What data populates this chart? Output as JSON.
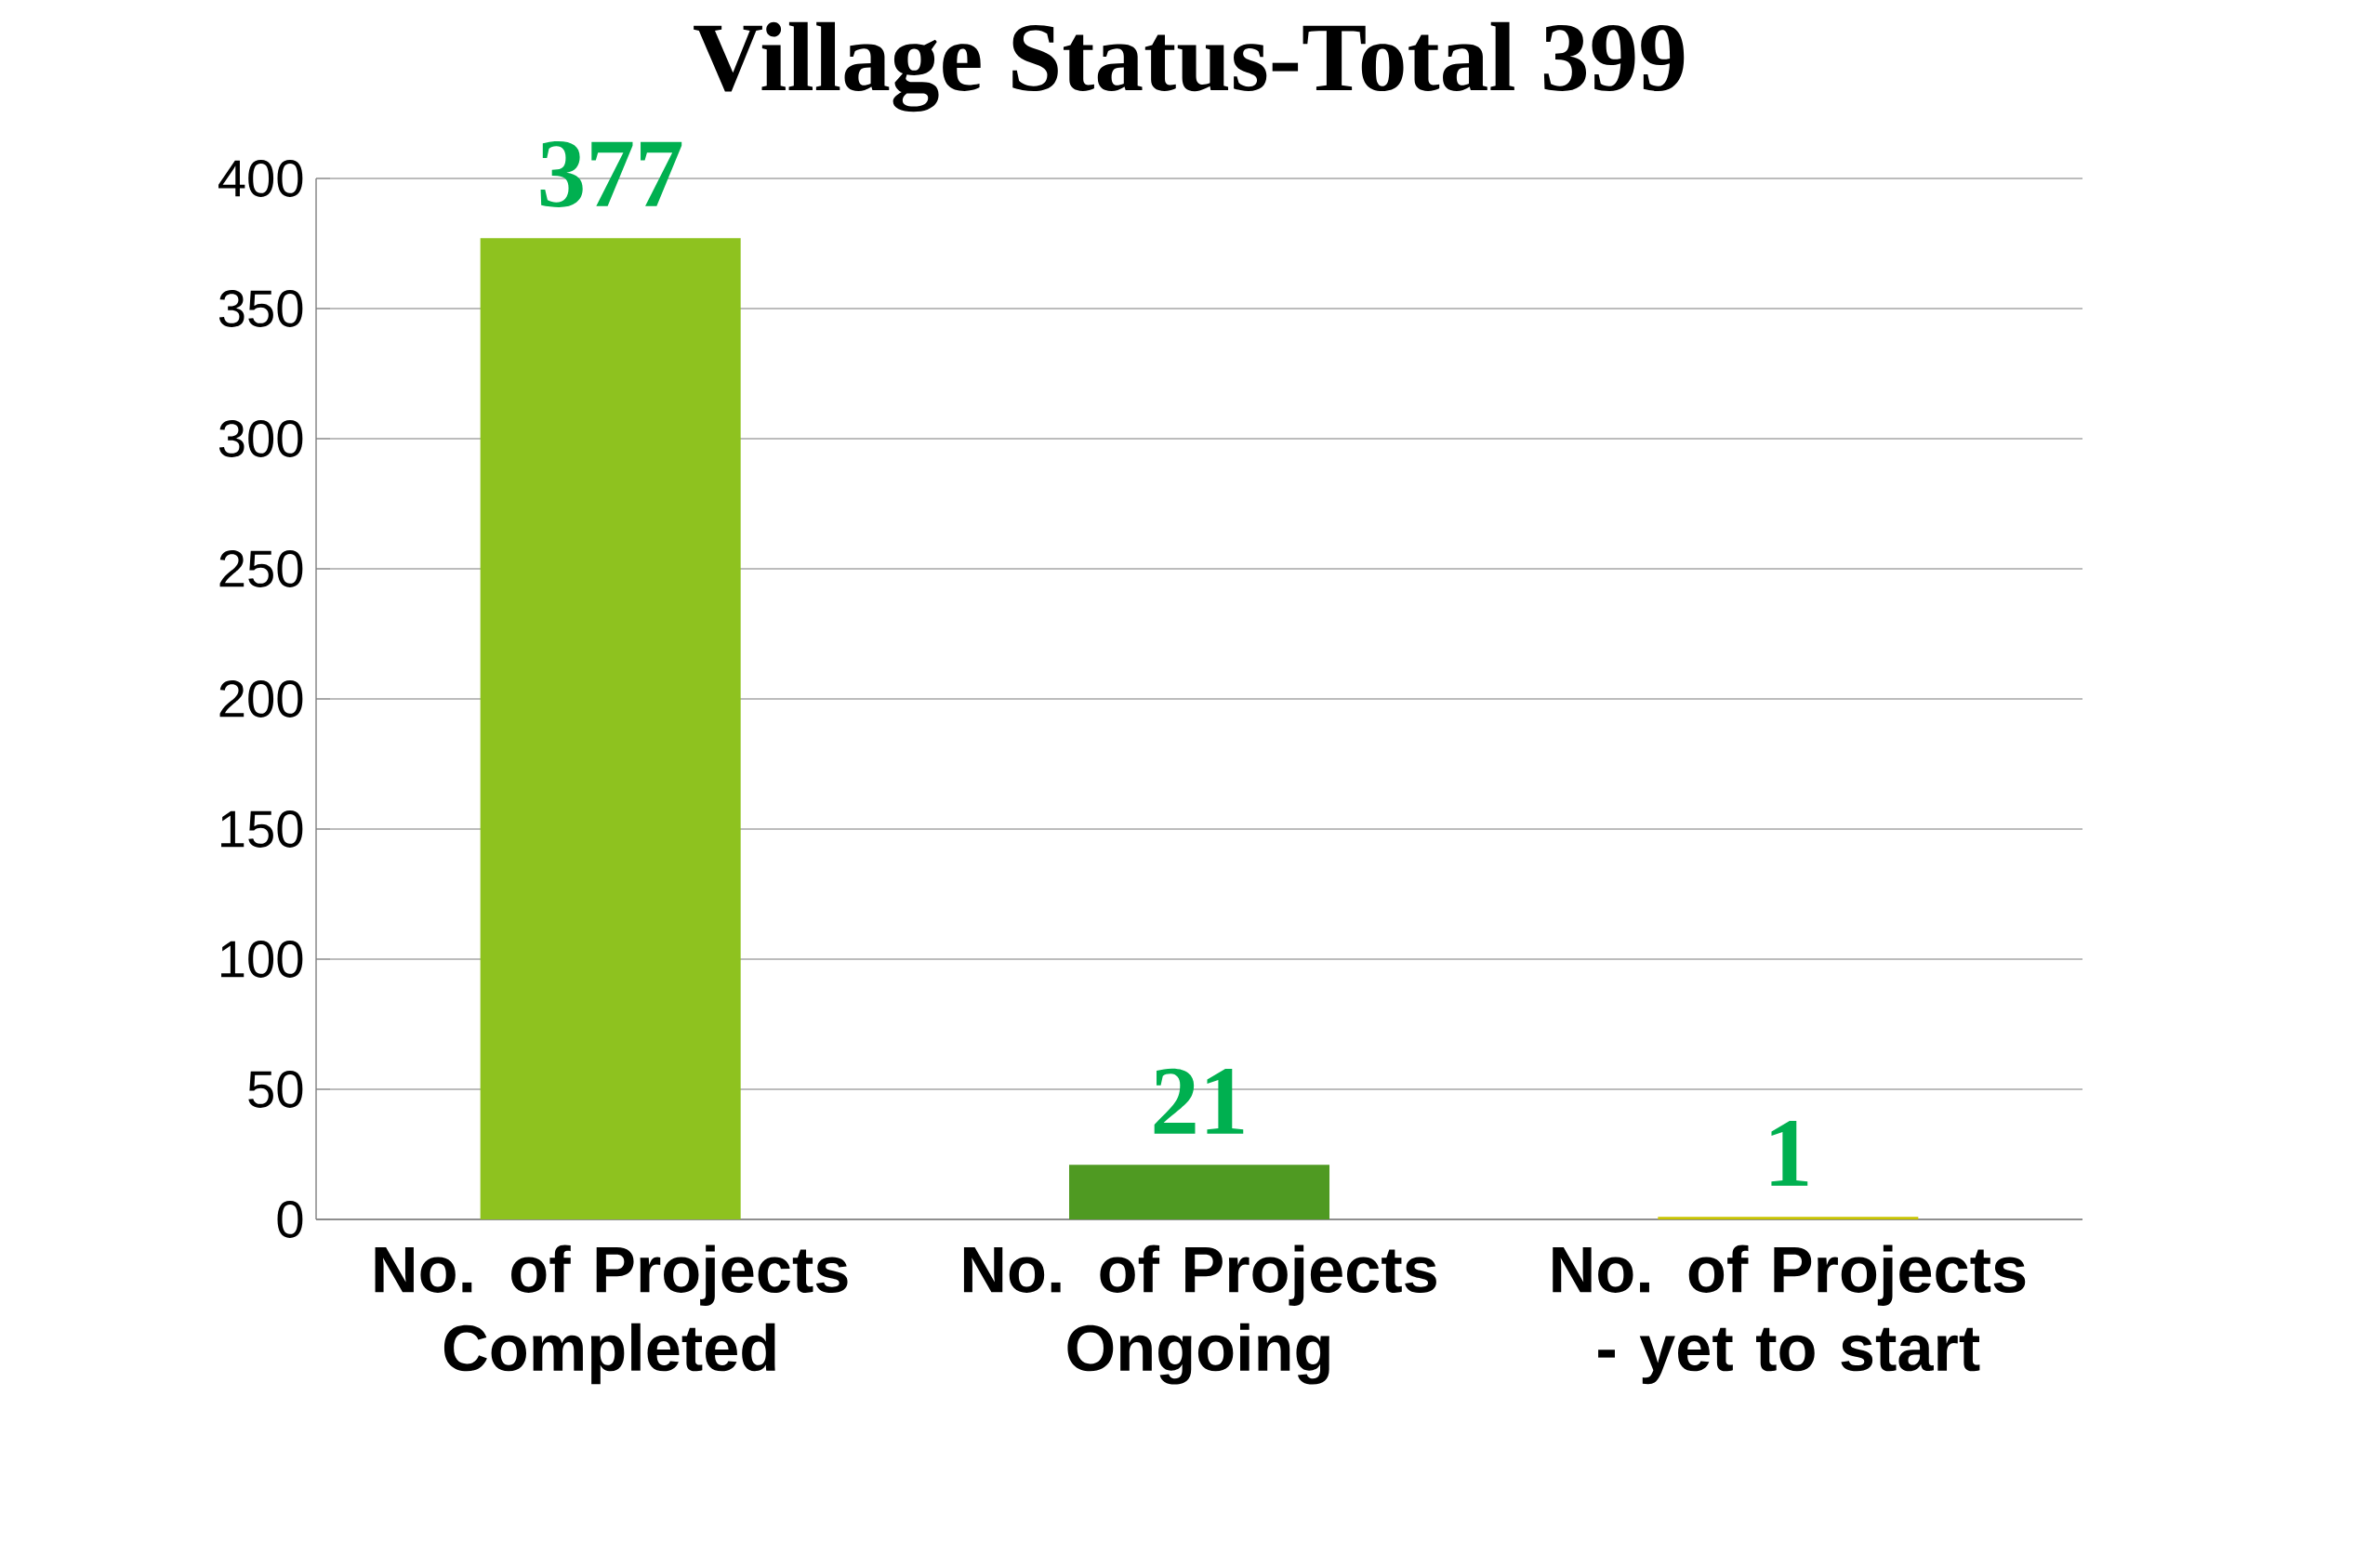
{
  "chart_data": {
    "type": "bar",
    "title": "Village Status-Total 399",
    "categories": [
      "No. of Projects Completed",
      "No. of Projects Ongoing",
      "No. of Projects - yet to start"
    ],
    "values": [
      377,
      21,
      1
    ],
    "colors": [
      "#8ec21f",
      "#4f9a22",
      "#c8c400"
    ],
    "ylim": [
      0,
      400
    ],
    "yticks": [
      0,
      50,
      100,
      150,
      200,
      250,
      300,
      350,
      400
    ],
    "grid": "y",
    "data_labels": true
  }
}
